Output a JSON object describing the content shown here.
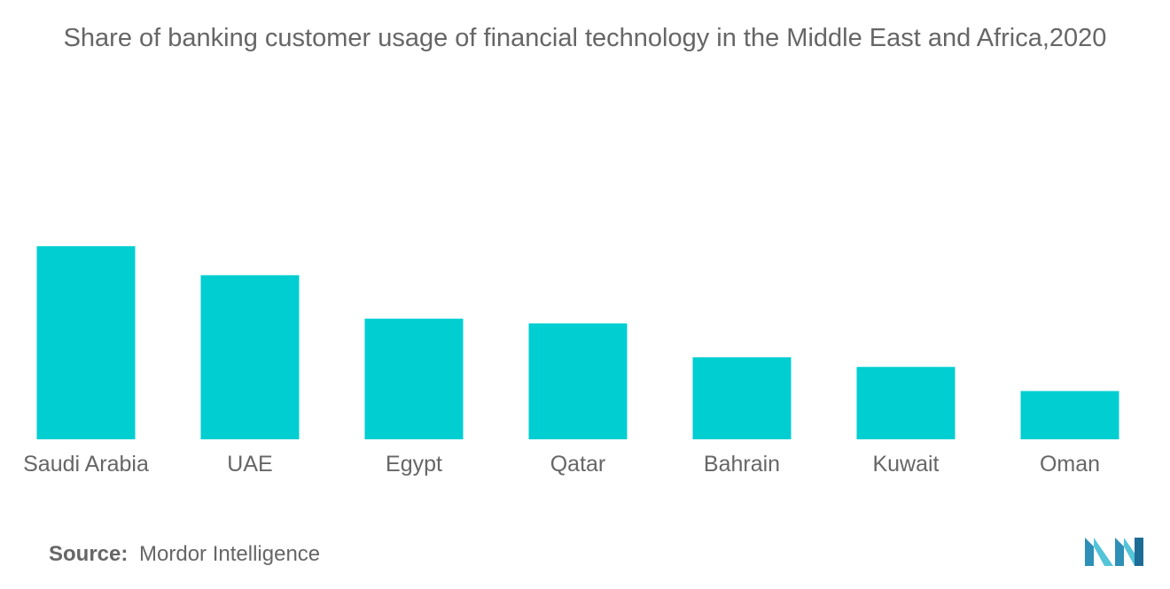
{
  "title": "Share of banking customer usage of financial technology in the Middle East and Africa,2020",
  "source": {
    "label": "Source:",
    "text": "Mordor Intelligence"
  },
  "colors": {
    "bar": "#00CED1",
    "text": "#666666"
  },
  "chart_data": {
    "type": "bar",
    "categories": [
      "Saudi Arabia",
      "UAE",
      "Egypt",
      "Qatar",
      "Bahrain",
      "Kuwait",
      "Oman"
    ],
    "values": [
      40,
      34,
      25,
      24,
      17,
      15,
      10
    ],
    "title": "Share of banking customer usage of financial technology in the Middle East and Africa,2020",
    "xlabel": "",
    "ylabel": "",
    "ylim": [
      0,
      40
    ],
    "grid": false,
    "legend": "none"
  },
  "logo": {
    "icon": "mordor-intelligence-logo-icon"
  }
}
